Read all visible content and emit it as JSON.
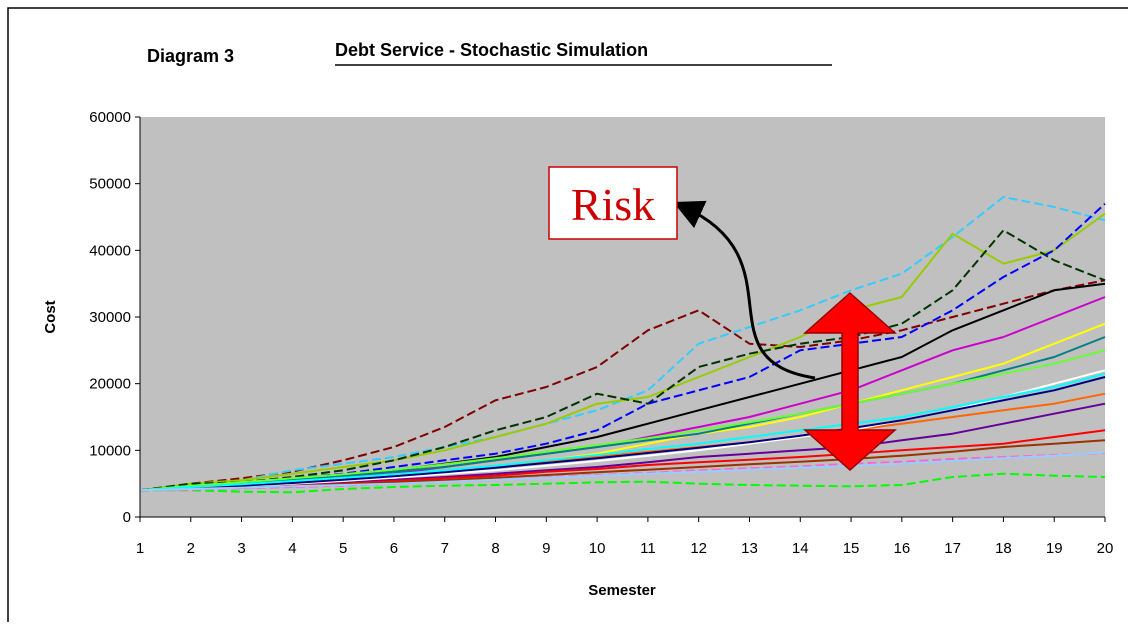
{
  "chart_data": {
    "type": "line",
    "label": "Diagram 3",
    "title": "Debt Service - Stochastic Simulation",
    "xlabel": "Semester",
    "ylabel": "Cost",
    "annotation": "Risk",
    "background": "#c0c0c0",
    "x": [
      1,
      2,
      3,
      4,
      5,
      6,
      7,
      8,
      9,
      10,
      11,
      12,
      13,
      14,
      15,
      16,
      17,
      18,
      19,
      20
    ],
    "xlim": [
      1,
      20
    ],
    "xticks": [
      1,
      2,
      3,
      4,
      5,
      6,
      7,
      8,
      9,
      10,
      11,
      12,
      13,
      14,
      15,
      16,
      17,
      18,
      19,
      20
    ],
    "ylim": [
      0,
      60000
    ],
    "yticks": [
      0,
      10000,
      20000,
      30000,
      40000,
      50000,
      60000
    ],
    "series": [
      {
        "color": "#800000",
        "dashed": true,
        "values": [
          4000,
          5000,
          5800,
          6800,
          8500,
          10500,
          13500,
          17500,
          19500,
          22500,
          28000,
          31000,
          26000,
          25500,
          26500,
          28000,
          30000,
          32000,
          34000,
          35500
        ]
      },
      {
        "color": "#33ccff",
        "dashed": true,
        "values": [
          4000,
          4800,
          5500,
          7000,
          8000,
          9000,
          10500,
          12000,
          14000,
          16000,
          19000,
          26000,
          28500,
          31000,
          34000,
          36500,
          42000,
          48000,
          46500,
          44500
        ]
      },
      {
        "color": "#99cc00",
        "dashed": false,
        "values": [
          4000,
          5000,
          5500,
          6500,
          7500,
          8500,
          10000,
          12000,
          14000,
          17000,
          18000,
          21000,
          24000,
          27000,
          31000,
          33000,
          42500,
          38000,
          40000,
          45500
        ]
      },
      {
        "color": "#003300",
        "dashed": true,
        "values": [
          4000,
          5000,
          5200,
          6000,
          7000,
          8500,
          10500,
          13000,
          15000,
          18500,
          17000,
          22500,
          24500,
          26000,
          27000,
          29000,
          34000,
          43000,
          38500,
          35500
        ]
      },
      {
        "color": "#0000ff",
        "dashed": true,
        "values": [
          4000,
          4500,
          5000,
          5800,
          6500,
          7500,
          8500,
          9500,
          11000,
          13000,
          17000,
          19000,
          21000,
          25000,
          26000,
          27000,
          31000,
          36000,
          40000,
          47000
        ]
      },
      {
        "color": "#000000",
        "dashed": false,
        "values": [
          4000,
          4600,
          5000,
          5600,
          6200,
          7000,
          8000,
          9000,
          10500,
          12000,
          14000,
          16000,
          18000,
          20000,
          22000,
          24000,
          28000,
          31000,
          34000,
          35000
        ]
      },
      {
        "color": "#cc00cc",
        "dashed": false,
        "values": [
          4000,
          4500,
          4800,
          5200,
          6000,
          6500,
          7500,
          8500,
          9500,
          10500,
          12000,
          13500,
          15000,
          17000,
          19000,
          22000,
          25000,
          27000,
          30000,
          33000
        ]
      },
      {
        "color": "#ffff00",
        "dashed": false,
        "values": [
          4000,
          4400,
          4700,
          5000,
          5500,
          6000,
          6800,
          7500,
          8500,
          9500,
          11000,
          12500,
          13500,
          15000,
          17000,
          19000,
          21000,
          23000,
          26000,
          29000
        ]
      },
      {
        "color": "#00ff00",
        "dashed": true,
        "values": [
          4000,
          4000,
          3800,
          3700,
          4200,
          4500,
          4700,
          4800,
          5000,
          5200,
          5300,
          5000,
          4800,
          4700,
          4600,
          4800,
          6000,
          6500,
          6200,
          6000
        ]
      },
      {
        "color": "#660099",
        "dashed": false,
        "values": [
          4000,
          4200,
          4500,
          4800,
          5200,
          5600,
          6000,
          6500,
          7000,
          7500,
          8200,
          9000,
          9500,
          10000,
          10500,
          11500,
          12500,
          14000,
          15500,
          17000
        ]
      },
      {
        "color": "#ff0000",
        "dashed": false,
        "values": [
          4000,
          4300,
          4500,
          4700,
          5000,
          5400,
          5800,
          6200,
          6800,
          7200,
          7800,
          8200,
          8600,
          9000,
          9500,
          10000,
          10500,
          11000,
          12000,
          13000
        ]
      },
      {
        "color": "#ff6600",
        "dashed": false,
        "values": [
          4000,
          4500,
          4800,
          5300,
          5800,
          6300,
          7000,
          7600,
          8300,
          9000,
          9800,
          10500,
          11200,
          12000,
          13000,
          14000,
          15000,
          16000,
          17000,
          18500
        ]
      },
      {
        "color": "#008080",
        "dashed": false,
        "values": [
          4000,
          4600,
          5100,
          5600,
          6200,
          6800,
          7500,
          8500,
          9500,
          10500,
          11500,
          12500,
          14000,
          15500,
          17000,
          18500,
          20000,
          22000,
          24000,
          27000
        ]
      },
      {
        "color": "#ffffff",
        "dashed": false,
        "values": [
          4000,
          4300,
          4600,
          5000,
          5400,
          5900,
          6500,
          7000,
          7700,
          8400,
          9200,
          10000,
          11000,
          12000,
          13000,
          14500,
          16000,
          18000,
          20000,
          22000
        ]
      },
      {
        "color": "#000080",
        "dashed": false,
        "values": [
          4000,
          4400,
          4700,
          5100,
          5600,
          6100,
          6700,
          7400,
          8100,
          8800,
          9600,
          10400,
          11200,
          12200,
          13300,
          14500,
          16000,
          17500,
          19000,
          21000
        ]
      },
      {
        "color": "#ff66cc",
        "dashed": true,
        "values": [
          4000,
          4100,
          4300,
          4500,
          4700,
          5000,
          5300,
          5600,
          6000,
          6300,
          6600,
          7000,
          7300,
          7600,
          8000,
          8300,
          8700,
          9000,
          9300,
          9600
        ]
      },
      {
        "color": "#66ff33",
        "dashed": false,
        "values": [
          4000,
          4700,
          5200,
          5800,
          6400,
          7100,
          7900,
          8800,
          9800,
          10800,
          11800,
          13000,
          14200,
          15500,
          17000,
          18500,
          20000,
          21500,
          23000,
          25000
        ]
      },
      {
        "color": "#993300",
        "dashed": false,
        "values": [
          4000,
          4300,
          4400,
          4600,
          4900,
          5200,
          5500,
          5900,
          6300,
          6700,
          7100,
          7500,
          7900,
          8300,
          8700,
          9200,
          9800,
          10500,
          11000,
          11500
        ]
      },
      {
        "color": "#00ffff",
        "dashed": false,
        "values": [
          4000,
          4500,
          4900,
          5400,
          5900,
          6400,
          7000,
          7700,
          8500,
          9300,
          10200,
          11000,
          12000,
          13000,
          14000,
          15000,
          16500,
          18000,
          19500,
          21500
        ]
      },
      {
        "color": "#99ccff",
        "dashed": false,
        "values": [
          4000,
          4200,
          4400,
          4600,
          4800,
          5000,
          5300,
          5600,
          5900,
          6200,
          6500,
          6800,
          7100,
          7400,
          7700,
          8000,
          8400,
          8800,
          9200,
          9700
        ]
      }
    ]
  }
}
